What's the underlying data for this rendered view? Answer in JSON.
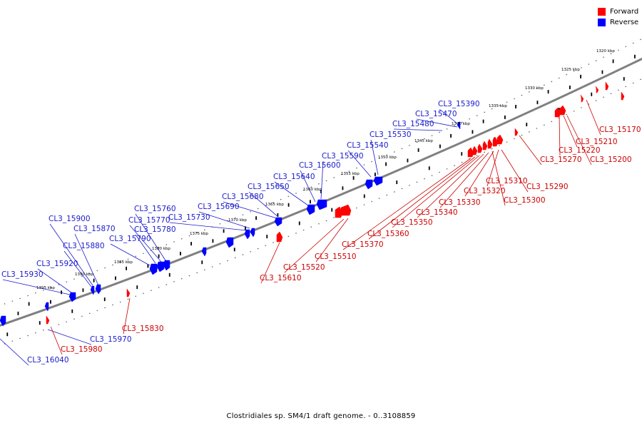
{
  "legend": {
    "forward_label": "Forward",
    "reverse_label": "Reverse",
    "forward_color": "#ff0000",
    "reverse_color": "#0000ff"
  },
  "caption": "Clostridiales sp. SM4/1 draft genome. - 0..3108859",
  "ticks": [
    "1320 kbp",
    "1325 kbp",
    "1330 kbp",
    "1335 kbp",
    "1340 kbp",
    "1345 kbp",
    "1350 kbp",
    "1355 kbp",
    "1360 kbp",
    "1365 kbp",
    "1370 kbp",
    "1375 kbp",
    "1380 kbp",
    "1385 kbp",
    "1390 kbp",
    "1395 kbp"
  ],
  "reverse_genes": [
    "CL3_15390",
    "CL3_15470",
    "CL3_15480",
    "CL3_15530",
    "CL3_15540",
    "CL3_15590",
    "CL3_15600",
    "CL3_15640",
    "CL3_15650",
    "CL3_15680",
    "CL3_15690",
    "CL3_15730",
    "CL3_15760",
    "CL3_15770",
    "CL3_15780",
    "CL3_15790",
    "CL3_15870",
    "CL3_15880",
    "CL3_15900",
    "CL3_15920",
    "CL3_15930",
    "CL3_15970",
    "CL3_16040"
  ],
  "forward_genes": [
    "CL3_15170",
    "CL3_15210",
    "CL3_15220",
    "CL3_15200",
    "CL3_15270",
    "CL3_15290",
    "CL3_15310",
    "CL3_15320",
    "CL3_15300",
    "CL3_15330",
    "CL3_15340",
    "CL3_15350",
    "CL3_15360",
    "CL3_15370",
    "CL3_15510",
    "CL3_15520",
    "CL3_15610",
    "CL3_15830",
    "CL3_15980"
  ]
}
